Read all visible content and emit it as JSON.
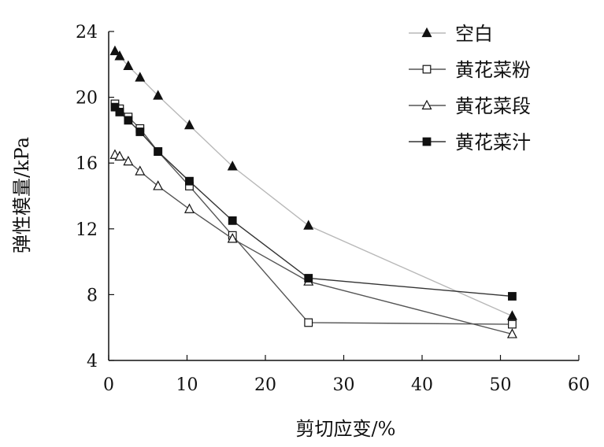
{
  "chart_data": {
    "type": "line",
    "xlabel": "剪切应变/%",
    "ylabel": "弹性模量/kPa",
    "xlim": [
      0,
      60
    ],
    "ylim": [
      4,
      24
    ],
    "xticks": [
      0,
      10,
      20,
      30,
      40,
      50,
      60
    ],
    "yticks": [
      4,
      8,
      12,
      16,
      20,
      24
    ],
    "grid": false,
    "legend_position": "top-right",
    "series": [
      {
        "name": "空白",
        "marker": "filled-triangle",
        "color": "#111111",
        "line_color": "#b8b8b8",
        "x": [
          0.8,
          1.4,
          2.5,
          4.0,
          6.3,
          10.3,
          15.8,
          25.5,
          51.5
        ],
        "y": [
          22.8,
          22.5,
          21.9,
          21.2,
          20.1,
          18.3,
          15.8,
          12.2,
          6.7
        ]
      },
      {
        "name": "黄花菜粉",
        "marker": "open-square",
        "color": "#111111",
        "line_color": "#555555",
        "x": [
          0.8,
          1.4,
          2.5,
          4.0,
          6.3,
          10.3,
          15.8,
          25.5,
          51.5
        ],
        "y": [
          19.6,
          19.3,
          18.8,
          18.1,
          16.7,
          14.6,
          11.6,
          6.3,
          6.2
        ]
      },
      {
        "name": "黄花菜段",
        "marker": "open-triangle",
        "color": "#111111",
        "line_color": "#555555",
        "x": [
          0.8,
          1.4,
          2.5,
          4.0,
          6.3,
          10.3,
          15.8,
          25.5,
          51.5
        ],
        "y": [
          16.5,
          16.4,
          16.1,
          15.5,
          14.6,
          13.2,
          11.4,
          8.8,
          5.6
        ]
      },
      {
        "name": "黄花菜汁",
        "marker": "filled-square",
        "color": "#111111",
        "line_color": "#333333",
        "x": [
          0.8,
          1.4,
          2.5,
          4.0,
          6.3,
          10.3,
          15.8,
          25.5,
          51.5
        ],
        "y": [
          19.4,
          19.1,
          18.6,
          17.9,
          16.7,
          14.9,
          12.5,
          9.0,
          7.9
        ]
      }
    ]
  }
}
